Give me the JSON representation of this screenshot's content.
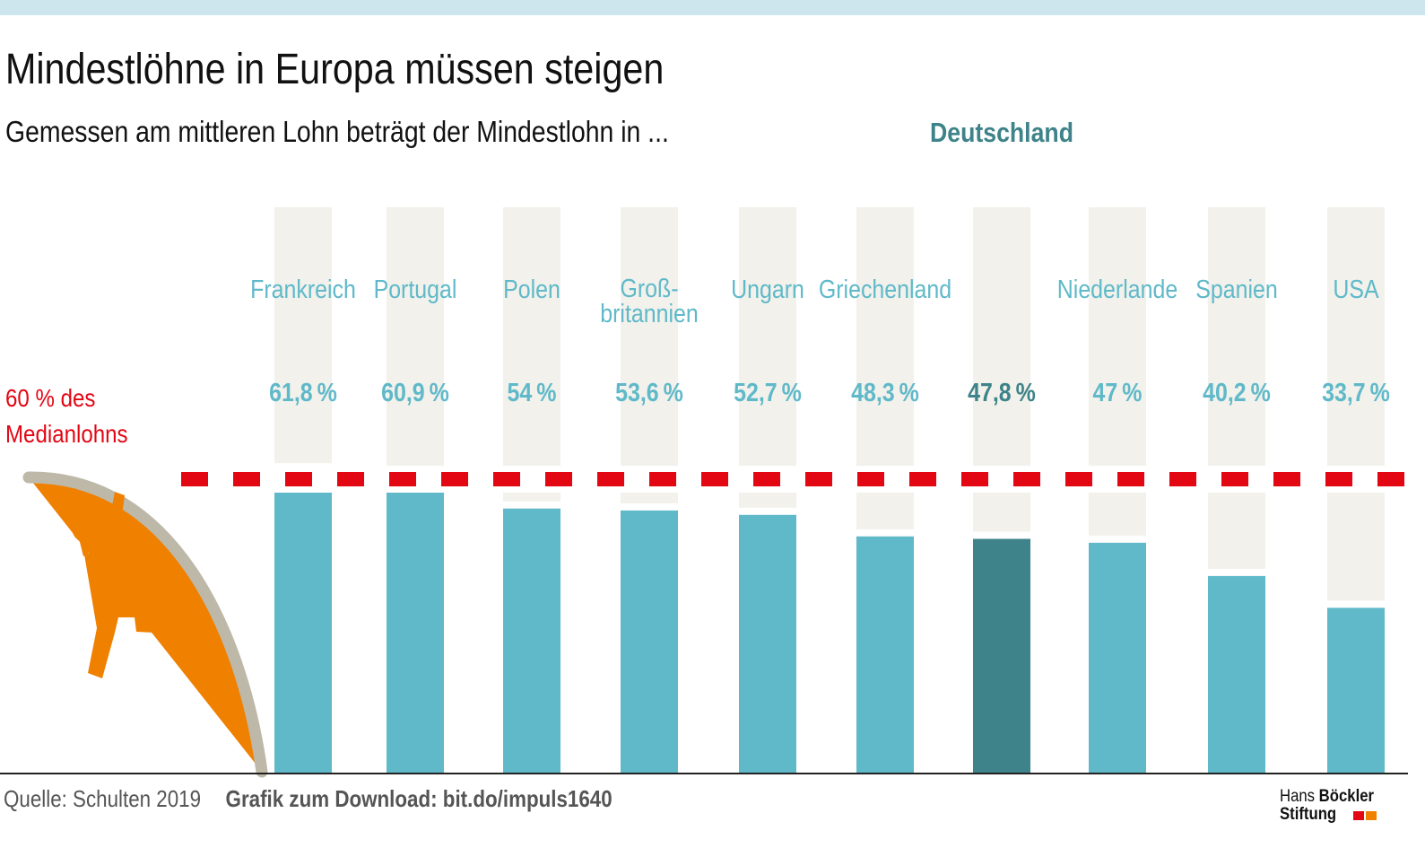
{
  "colors": {
    "top_bar": "#cde6ee",
    "bar": "#5fb9c9",
    "bar_highlight": "#3e8389",
    "background_column": "#f2f1eb",
    "reference_line": "#e30613",
    "label": "#5fb9c9",
    "label_highlight": "#3e8389",
    "pole": "#bdb8a8",
    "figure": "#f08000",
    "logo_red": "#e30613",
    "logo_orange": "#f08000"
  },
  "header": {
    "title": "Mindestlöhne in Europa müssen steigen",
    "subtitle": "Gemessen am mittleren Lohn beträgt der Mindestlohn in ...",
    "highlight_label": "Deutschland"
  },
  "reference": {
    "label_line1": "60 % des",
    "label_line2": "Medianlohns",
    "value": 60
  },
  "chart_data": {
    "type": "bar",
    "categories": [
      [
        "Frankreich"
      ],
      [
        "Portugal"
      ],
      [
        "Polen"
      ],
      [
        "Groß-",
        "britannien"
      ],
      [
        "Ungarn"
      ],
      [
        "Griechenland"
      ],
      [
        "Deutschland"
      ],
      [
        "Niederlande"
      ],
      [
        "Spanien"
      ],
      [
        "USA"
      ]
    ],
    "values": [
      61.8,
      60.9,
      54,
      53.6,
      52.7,
      48.3,
      47.8,
      47,
      40.2,
      33.7
    ],
    "value_labels": [
      "61,8 %",
      "60,9 %",
      "54 %",
      "53,6 %",
      "52,7 %",
      "48,3 %",
      "47,8 %",
      "47 %",
      "40,2 %",
      "33,7 %"
    ],
    "highlight_index": 6,
    "reference_line": 60,
    "ylim": [
      0,
      100
    ],
    "grid": false,
    "legend": "none",
    "unit": "%"
  },
  "footer": {
    "source": "Quelle: Schulten 2019",
    "download": "Grafik zum Download: bit.do/impuls1640"
  },
  "logo": {
    "word1": "Hans ",
    "word2": "Böckler",
    "word3": "Stiftung"
  }
}
